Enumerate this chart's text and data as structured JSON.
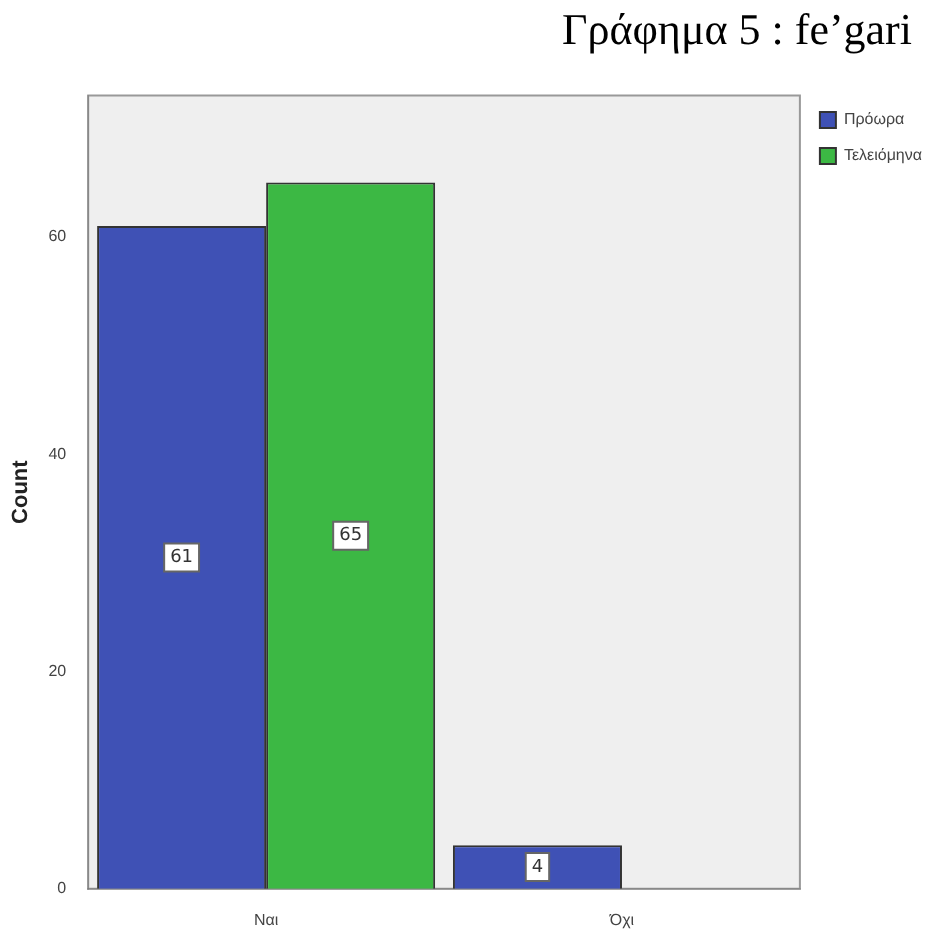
{
  "chart_data": {
    "type": "bar",
    "title": "Γράφημα 5 : fe’gari",
    "ylabel": "Count",
    "categories": [
      "Ναι",
      "Όχι"
    ],
    "series": [
      {
        "name": "Πρόωρα",
        "color": "#3f51b5",
        "values": [
          61,
          4
        ],
        "value_labels": [
          "61",
          "4"
        ]
      },
      {
        "name": "Τελειόμηνα",
        "color": "#3cb844",
        "values": [
          65,
          null
        ],
        "value_labels": [
          "65",
          null
        ]
      }
    ],
    "ylim": [
      0,
      73
    ],
    "yticks": [
      0,
      20,
      40,
      60
    ],
    "grid": false,
    "legend": "top right"
  }
}
